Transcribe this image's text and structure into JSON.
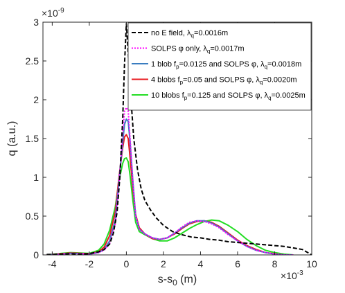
{
  "chart_data": {
    "type": "line",
    "title": "",
    "xlabel": "s-s",
    "xlabel_sub": "0",
    "xlabel_unit": " (m)",
    "ylabel": "q (a.u.)",
    "x_exponent_base": "×10",
    "x_exponent_power": "-3",
    "y_exponent_base": "×10",
    "y_exponent_power": "-9",
    "xlim": [
      -4.5,
      10
    ],
    "ylim": [
      0,
      3
    ],
    "x_ticks": [
      -4,
      -2,
      0,
      2,
      4,
      6,
      8,
      10
    ],
    "x_tick_labels": [
      "-4",
      "-2",
      "0",
      "2",
      "4",
      "6",
      "8",
      "10"
    ],
    "y_ticks": [
      0,
      0.5,
      1,
      1.5,
      2,
      2.5,
      3
    ],
    "y_tick_labels": [
      "0",
      "0.5",
      "1",
      "1.5",
      "2",
      "2.5",
      "3"
    ],
    "grid": false,
    "legend_position": "top-right",
    "series": [
      {
        "name": "no E field, λq=0.0016m",
        "legend_main": "no E field, λ",
        "legend_sub": "q",
        "legend_tail": "=0.0016m",
        "color": "#000000",
        "dash": "6,3",
        "width": 2,
        "x": [
          -4.3,
          -3.5,
          -3,
          -2.5,
          -2,
          -1.5,
          -1.2,
          -0.9,
          -0.7,
          -0.5,
          -0.35,
          -0.2,
          -0.1,
          0,
          0.1,
          0.25,
          0.4,
          0.6,
          0.8,
          1.0,
          1.3,
          1.6,
          2.0,
          2.5,
          3.0,
          3.5,
          4.0,
          4.5,
          5.0,
          5.5,
          6.0,
          6.5,
          7.0,
          7.5,
          8.0,
          8.5,
          9.0,
          9.5,
          10.0
        ],
        "y": [
          0.005,
          0.01,
          0.015,
          0.01,
          0.015,
          0.04,
          0.07,
          0.14,
          0.28,
          0.55,
          1.0,
          1.75,
          2.45,
          2.98,
          2.6,
          2.0,
          1.5,
          1.1,
          0.85,
          0.7,
          0.58,
          0.48,
          0.38,
          0.3,
          0.26,
          0.23,
          0.22,
          0.2,
          0.19,
          0.17,
          0.16,
          0.15,
          0.14,
          0.13,
          0.12,
          0.11,
          0.09,
          0.07,
          0.0
        ]
      },
      {
        "name": "SOLPS φ only, λq=0.0017m",
        "legend_main": "SOLPS φ only, λ",
        "legend_sub": "q",
        "legend_tail": "=0.0017m",
        "color": "#ff00ff",
        "dash": "2,2",
        "width": 2,
        "x": [
          -4.3,
          -3.5,
          -3,
          -2.5,
          -2,
          -1.5,
          -1.2,
          -0.9,
          -0.6,
          -0.4,
          -0.2,
          -0.1,
          0,
          0.1,
          0.2,
          0.35,
          0.5,
          0.7,
          1.0,
          1.4,
          1.8,
          2.2,
          2.6,
          3.0,
          3.4,
          3.8,
          4.2,
          4.6,
          5.0,
          5.5,
          6.0,
          6.5,
          7.0,
          7.5,
          8.0,
          8.5,
          9.0
        ],
        "y": [
          0.0,
          0.01,
          0.02,
          0.015,
          0.01,
          0.03,
          0.06,
          0.15,
          0.4,
          0.9,
          1.55,
          1.85,
          1.9,
          1.85,
          1.5,
          0.95,
          0.5,
          0.33,
          0.27,
          0.22,
          0.2,
          0.22,
          0.28,
          0.36,
          0.42,
          0.44,
          0.43,
          0.4,
          0.35,
          0.26,
          0.18,
          0.11,
          0.06,
          0.03,
          0.01,
          0.0,
          0.0
        ]
      },
      {
        "name": "1 blob fp=0.0125 and SOLPS φ, λq=0.0018m",
        "legend_main": "1 blob f",
        "legend_sub": "p",
        "legend_tail": "=0.0125 and SOLPS φ, λ",
        "legend_sub2": "q",
        "legend_tail2": "=0.0018m",
        "color": "#3a7dc0",
        "dash": "",
        "width": 2,
        "x": [
          -4.3,
          -3.5,
          -3,
          -2.5,
          -2,
          -1.5,
          -1.2,
          -0.9,
          -0.6,
          -0.4,
          -0.2,
          -0.1,
          0,
          0.1,
          0.2,
          0.35,
          0.5,
          0.7,
          1.0,
          1.4,
          1.8,
          2.2,
          2.6,
          3.0,
          3.4,
          3.8,
          4.2,
          4.6,
          5.0,
          5.5,
          6.0,
          6.5,
          7.0,
          7.5,
          8.0,
          8.5,
          9.0
        ],
        "y": [
          0.0,
          0.01,
          0.02,
          0.015,
          0.01,
          0.03,
          0.07,
          0.18,
          0.45,
          0.95,
          1.45,
          1.68,
          1.75,
          1.72,
          1.45,
          0.95,
          0.5,
          0.33,
          0.27,
          0.22,
          0.2,
          0.22,
          0.28,
          0.35,
          0.41,
          0.44,
          0.44,
          0.41,
          0.36,
          0.27,
          0.18,
          0.11,
          0.06,
          0.03,
          0.01,
          0.0,
          0.0
        ]
      },
      {
        "name": "4 blobs fp=0.05 and SOLPS φ, λq=0.0020m",
        "legend_main": "4 blobs f",
        "legend_sub": "p",
        "legend_tail": "=0.05 and SOLPS φ, λ",
        "legend_sub2": "q",
        "legend_tail2": "=0.0020m",
        "color": "#e8191e",
        "dash": "",
        "width": 2,
        "x": [
          -4.3,
          -3.5,
          -3,
          -2.5,
          -2,
          -1.5,
          -1.2,
          -0.9,
          -0.6,
          -0.4,
          -0.2,
          -0.1,
          0,
          0.1,
          0.2,
          0.35,
          0.5,
          0.7,
          1.0,
          1.4,
          1.8,
          2.2,
          2.6,
          3.0,
          3.4,
          3.8,
          4.2,
          4.6,
          5.0,
          5.5,
          6.0,
          6.5,
          7.0,
          7.5,
          8.0,
          8.5,
          9.0
        ],
        "y": [
          0.0,
          0.015,
          0.025,
          0.02,
          0.015,
          0.04,
          0.1,
          0.25,
          0.55,
          1.0,
          1.38,
          1.52,
          1.55,
          1.5,
          1.25,
          0.85,
          0.52,
          0.35,
          0.27,
          0.21,
          0.2,
          0.22,
          0.27,
          0.34,
          0.4,
          0.43,
          0.44,
          0.42,
          0.37,
          0.28,
          0.19,
          0.12,
          0.07,
          0.03,
          0.015,
          0.0,
          0.0
        ]
      },
      {
        "name": "10 blobs fp=0.125 and SOLPS φ, λq=0.0025m",
        "legend_main": "10 blobs f",
        "legend_sub": "p",
        "legend_tail": "=0.125 and SOLPS φ, λ",
        "legend_sub2": "q",
        "legend_tail2": "=0.0025m",
        "color": "#22dd22",
        "dash": "",
        "width": 2,
        "x": [
          -4.3,
          -3.5,
          -3,
          -2.5,
          -2,
          -1.5,
          -1.2,
          -0.9,
          -0.6,
          -0.4,
          -0.2,
          -0.1,
          0,
          0.1,
          0.2,
          0.35,
          0.5,
          0.7,
          1.0,
          1.4,
          1.8,
          2.2,
          2.6,
          3.0,
          3.4,
          3.8,
          4.2,
          4.6,
          5.0,
          5.5,
          6.0,
          6.5,
          7.0,
          7.5,
          8.0,
          8.5,
          9.0
        ],
        "y": [
          0.0,
          0.02,
          0.03,
          0.025,
          0.02,
          0.06,
          0.14,
          0.32,
          0.62,
          0.95,
          1.18,
          1.24,
          1.25,
          1.2,
          1.02,
          0.7,
          0.42,
          0.3,
          0.26,
          0.21,
          0.18,
          0.18,
          0.22,
          0.28,
          0.34,
          0.39,
          0.43,
          0.45,
          0.44,
          0.38,
          0.3,
          0.2,
          0.12,
          0.06,
          0.03,
          0.01,
          0.0
        ]
      }
    ]
  }
}
